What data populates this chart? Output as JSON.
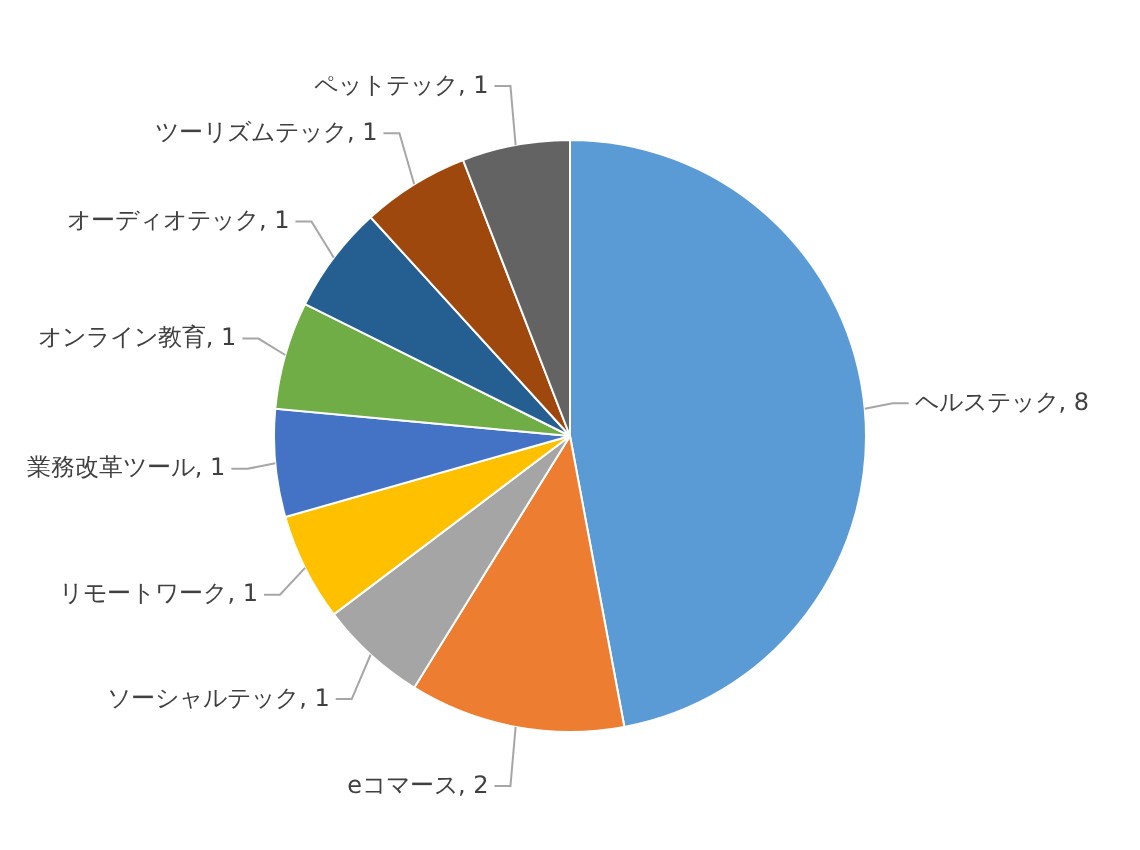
{
  "chart_data": {
    "type": "pie",
    "categories": [
      "ヘルステック",
      "eコマース",
      "ソーシャルテック",
      "リモートワーク",
      "業務改革ツール",
      "オンライン教育",
      "オーディオテック",
      "ツーリズムテック",
      "ペットテック"
    ],
    "values": [
      8,
      2,
      1,
      1,
      1,
      1,
      1,
      1,
      1
    ],
    "value_labels": [
      ", 8",
      ", 2",
      ", 1",
      ", 1",
      ", 1",
      ", 1",
      ", 1",
      ", 1",
      ", 1"
    ],
    "colors": [
      "#5b9bd5",
      "#ed7d31",
      "#a5a5a5",
      "#ffc000",
      "#4472c4",
      "#70ad47",
      "#255e91",
      "#9e480e",
      "#636363"
    ]
  }
}
